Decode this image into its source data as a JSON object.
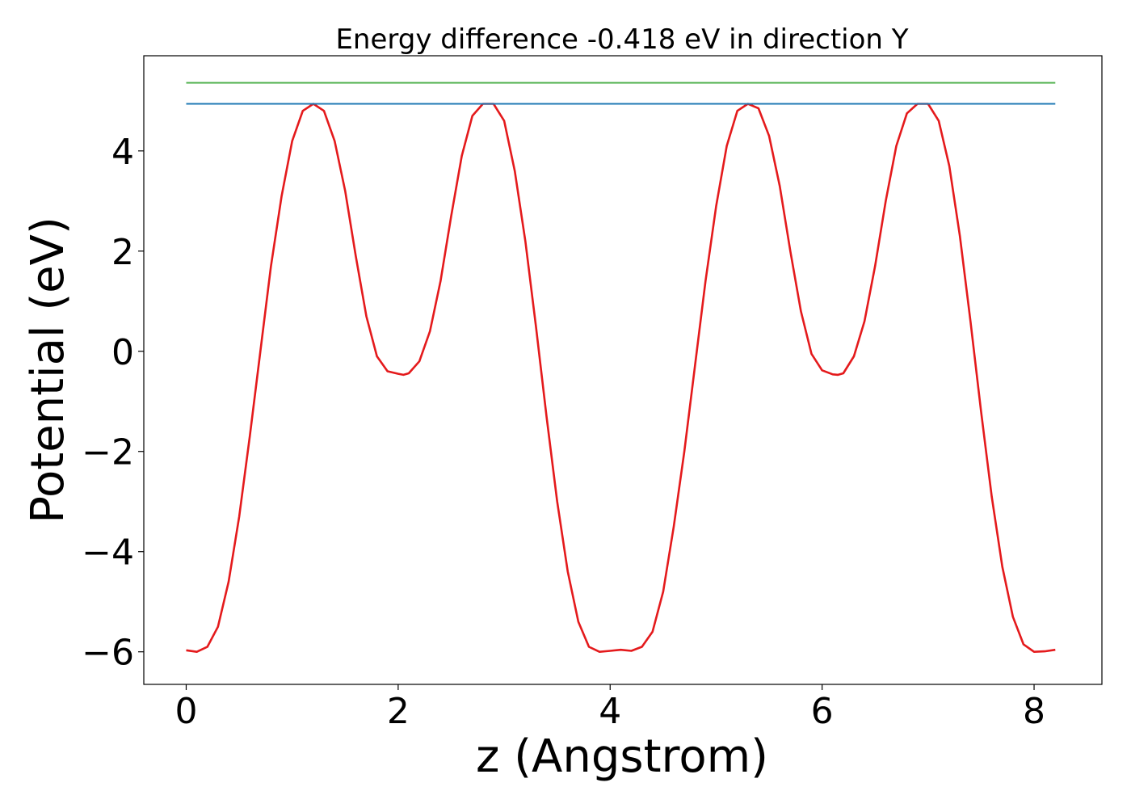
{
  "chart_data": {
    "type": "line",
    "title": "Energy difference -0.418 eV in direction Y",
    "xlabel": "z (Angstrom)",
    "ylabel": "Potential (eV)",
    "xlim": [
      -0.4,
      8.64
    ],
    "ylim": [
      -6.65,
      5.9
    ],
    "xticks": [
      0,
      2,
      4,
      6,
      8
    ],
    "yticks": [
      -6,
      -4,
      -2,
      0,
      2,
      4
    ],
    "ytick_labels": [
      "−6",
      "−4",
      "−2",
      "0",
      "2",
      "4"
    ],
    "grid": false,
    "legend": "none",
    "series": [
      {
        "color": "#e41a1c",
        "style": "solid",
        "x": [
          0.0,
          0.1,
          0.2,
          0.3,
          0.4,
          0.5,
          0.6,
          0.7,
          0.8,
          0.9,
          1.0,
          1.1,
          1.2,
          1.3,
          1.4,
          1.5,
          1.6,
          1.7,
          1.8,
          1.9,
          2.0,
          2.05,
          2.1,
          2.2,
          2.3,
          2.4,
          2.5,
          2.6,
          2.7,
          2.8,
          2.9,
          3.0,
          3.1,
          3.2,
          3.3,
          3.4,
          3.5,
          3.6,
          3.7,
          3.8,
          3.9,
          4.0,
          4.1,
          4.2,
          4.3,
          4.4,
          4.5,
          4.6,
          4.7,
          4.8,
          4.9,
          5.0,
          5.1,
          5.2,
          5.3,
          5.4,
          5.5,
          5.6,
          5.7,
          5.8,
          5.9,
          6.0,
          6.1,
          6.15,
          6.2,
          6.3,
          6.4,
          6.5,
          6.6,
          6.7,
          6.8,
          6.9,
          7.0,
          7.1,
          7.2,
          7.3,
          7.4,
          7.5,
          7.6,
          7.7,
          7.8,
          7.9,
          8.0,
          8.1,
          8.2
        ],
        "y": [
          -5.97,
          -6.0,
          -5.9,
          -5.5,
          -4.6,
          -3.3,
          -1.7,
          0.0,
          1.7,
          3.1,
          4.2,
          4.8,
          4.94,
          4.8,
          4.2,
          3.2,
          1.9,
          0.7,
          -0.1,
          -0.4,
          -0.45,
          -0.47,
          -0.44,
          -0.2,
          0.4,
          1.4,
          2.7,
          3.9,
          4.7,
          4.94,
          4.94,
          4.6,
          3.6,
          2.2,
          0.5,
          -1.3,
          -3.0,
          -4.4,
          -5.4,
          -5.9,
          -6.0,
          -5.98,
          -5.96,
          -5.98,
          -5.9,
          -5.6,
          -4.8,
          -3.5,
          -2.0,
          -0.3,
          1.4,
          2.9,
          4.1,
          4.8,
          4.94,
          4.85,
          4.3,
          3.3,
          2.0,
          0.8,
          -0.05,
          -0.38,
          -0.46,
          -0.47,
          -0.44,
          -0.1,
          0.6,
          1.7,
          3.0,
          4.1,
          4.75,
          4.94,
          4.94,
          4.6,
          3.7,
          2.3,
          0.6,
          -1.2,
          -2.9,
          -4.3,
          -5.3,
          -5.85,
          -6.0,
          -5.99,
          -5.96
        ]
      },
      {
        "color": "#1f78b4",
        "style": "solid",
        "x": [
          0.0,
          8.2
        ],
        "y": [
          4.94,
          4.94
        ]
      },
      {
        "color": "#4daf4a",
        "style": "solid",
        "x": [
          0.0,
          8.2
        ],
        "y": [
          5.36,
          5.36
        ]
      }
    ]
  }
}
